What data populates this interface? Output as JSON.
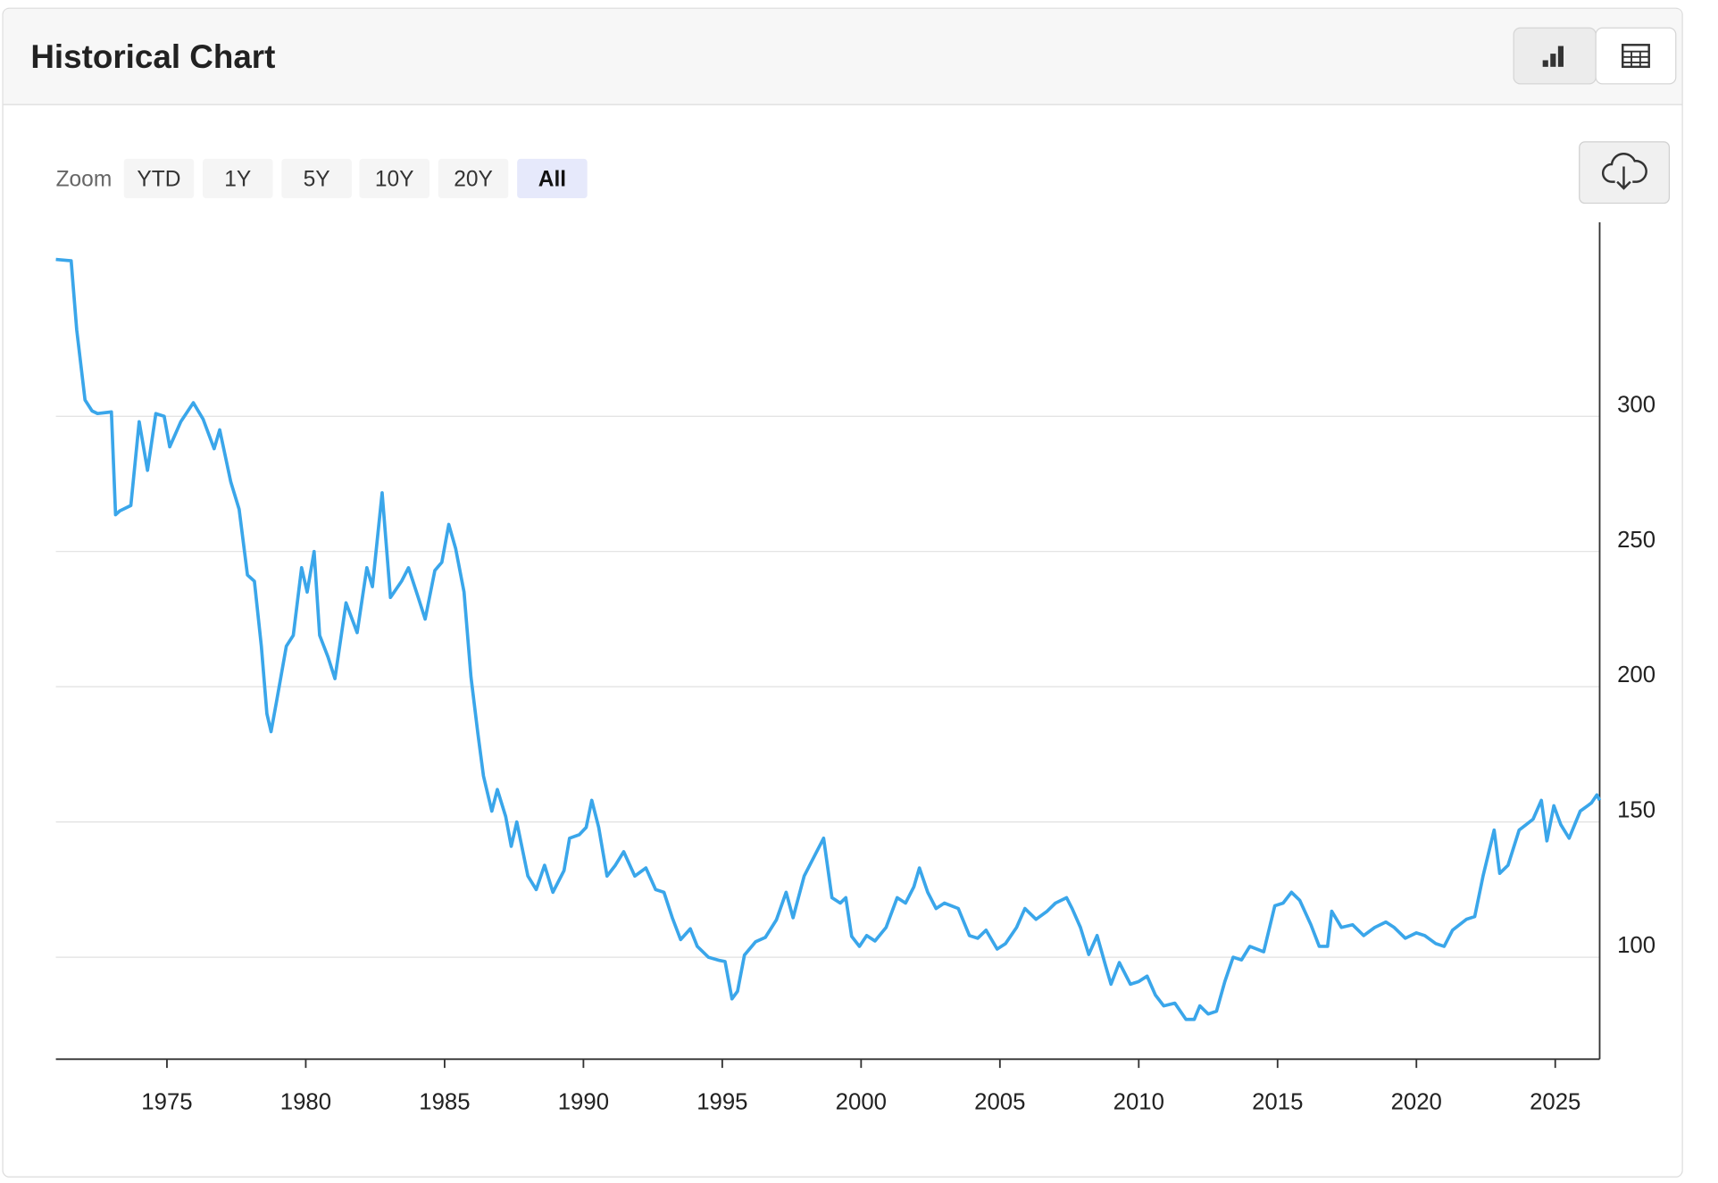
{
  "header": {
    "title": "Historical Chart"
  },
  "zoom": {
    "label": "Zoom",
    "options": [
      "YTD",
      "1Y",
      "5Y",
      "10Y",
      "20Y",
      "All"
    ],
    "selected": "All"
  },
  "chart_data": {
    "type": "line",
    "color": "#3aa6ea",
    "x": [
      1971.0,
      1971.55,
      1971.75,
      1972.05,
      1972.3,
      1972.5,
      1973.0,
      1973.15,
      1973.3,
      1973.7,
      1974.0,
      1974.3,
      1974.6,
      1974.9,
      1975.1,
      1975.5,
      1975.95,
      1976.3,
      1976.7,
      1976.9,
      1977.3,
      1977.6,
      1977.9,
      1978.15,
      1978.4,
      1978.6,
      1978.75,
      1978.95,
      1979.3,
      1979.55,
      1979.85,
      1980.05,
      1980.3,
      1980.5,
      1980.8,
      1981.05,
      1981.45,
      1981.85,
      1982.2,
      1982.4,
      1982.75,
      1983.05,
      1983.45,
      1983.7,
      1984.05,
      1984.3,
      1984.65,
      1984.9,
      1985.15,
      1985.4,
      1985.7,
      1985.95,
      1986.2,
      1986.4,
      1986.7,
      1986.9,
      1987.2,
      1987.4,
      1987.6,
      1988.0,
      1988.3,
      1988.6,
      1988.9,
      1989.3,
      1989.5,
      1989.85,
      1990.1,
      1990.3,
      1990.55,
      1990.85,
      1991.15,
      1991.45,
      1991.85,
      1992.25,
      1992.6,
      1992.9,
      1993.2,
      1993.5,
      1993.85,
      1994.1,
      1994.5,
      1994.9,
      1995.1,
      1995.35,
      1995.55,
      1995.8,
      1996.2,
      1996.55,
      1996.95,
      1997.3,
      1997.55,
      1997.95,
      1998.35,
      1998.65,
      1998.95,
      1999.25,
      1999.45,
      1999.66,
      1999.94,
      2000.2,
      2000.5,
      2000.9,
      2001.3,
      2001.6,
      2001.9,
      2002.1,
      2002.4,
      2002.7,
      2003.0,
      2003.5,
      2003.9,
      2004.2,
      2004.5,
      2004.9,
      2005.2,
      2005.6,
      2005.9,
      2006.3,
      2006.7,
      2007.0,
      2007.4,
      2007.6,
      2007.9,
      2008.2,
      2008.5,
      2008.8,
      2009.0,
      2009.3,
      2009.7,
      2010.0,
      2010.3,
      2010.6,
      2010.9,
      2011.3,
      2011.7,
      2012.0,
      2012.2,
      2012.5,
      2012.8,
      2013.1,
      2013.4,
      2013.7,
      2014.0,
      2014.5,
      2014.9,
      2015.2,
      2015.5,
      2015.8,
      2016.2,
      2016.5,
      2016.8,
      2016.95,
      2017.3,
      2017.7,
      2018.1,
      2018.5,
      2018.9,
      2019.2,
      2019.6,
      2020.0,
      2020.3,
      2020.7,
      2021.0,
      2021.3,
      2021.8,
      2022.1,
      2022.4,
      2022.8,
      2023.0,
      2023.3,
      2023.7,
      2023.95,
      2024.2,
      2024.5,
      2024.7,
      2024.95,
      2025.2,
      2025.5,
      2025.9,
      2026.3,
      2026.5,
      2026.6
    ],
    "values": [
      358,
      357.5,
      332,
      306,
      302,
      301,
      301.6,
      263.6,
      265,
      267,
      298,
      280,
      301,
      300,
      288.7,
      298,
      305,
      299,
      288,
      295,
      275.7,
      265.6,
      241.3,
      239,
      215,
      190,
      183.4,
      194.7,
      215,
      219,
      244,
      235,
      250,
      219,
      211,
      203,
      231,
      220,
      244,
      237,
      271.7,
      233,
      239,
      244,
      233,
      225,
      243,
      246,
      260,
      251,
      235,
      203.6,
      182.6,
      167,
      154,
      162,
      152,
      141,
      150,
      130,
      125,
      134,
      124,
      132,
      144,
      145.3,
      148,
      158,
      148,
      130,
      134,
      139,
      130,
      133,
      125,
      124,
      114.6,
      106.5,
      110.5,
      104,
      100,
      98.8,
      98.4,
      84.6,
      87.4,
      100.8,
      105.7,
      107.3,
      113.8,
      124,
      114.6,
      130,
      138,
      144,
      122,
      120,
      122,
      107.7,
      104,
      108,
      106,
      111,
      122,
      120,
      126,
      133,
      124,
      118,
      120,
      118,
      108,
      107,
      110,
      103,
      105,
      111,
      118,
      114,
      117,
      120,
      122,
      118,
      111,
      101,
      108,
      97,
      90,
      98,
      90,
      91,
      93,
      86,
      82,
      83,
      77,
      77,
      82,
      79,
      80,
      91,
      100,
      99,
      104,
      102,
      119,
      120,
      124,
      121,
      112,
      104,
      104,
      117,
      111,
      112,
      108,
      111,
      113,
      111,
      107,
      109,
      108,
      105,
      104,
      110,
      114,
      115,
      130,
      147,
      131,
      134,
      147,
      149,
      151,
      158,
      143,
      156,
      149,
      144,
      154,
      157,
      160,
      158
    ],
    "xlim": [
      1971.0,
      2026.6
    ],
    "xticks": [
      1975,
      1980,
      1985,
      1990,
      1995,
      2000,
      2005,
      2010,
      2015,
      2020,
      2025
    ],
    "ylim": [
      62.3,
      371.7
    ],
    "yticks": [
      100,
      150,
      200,
      250,
      300
    ],
    "grid": true
  }
}
